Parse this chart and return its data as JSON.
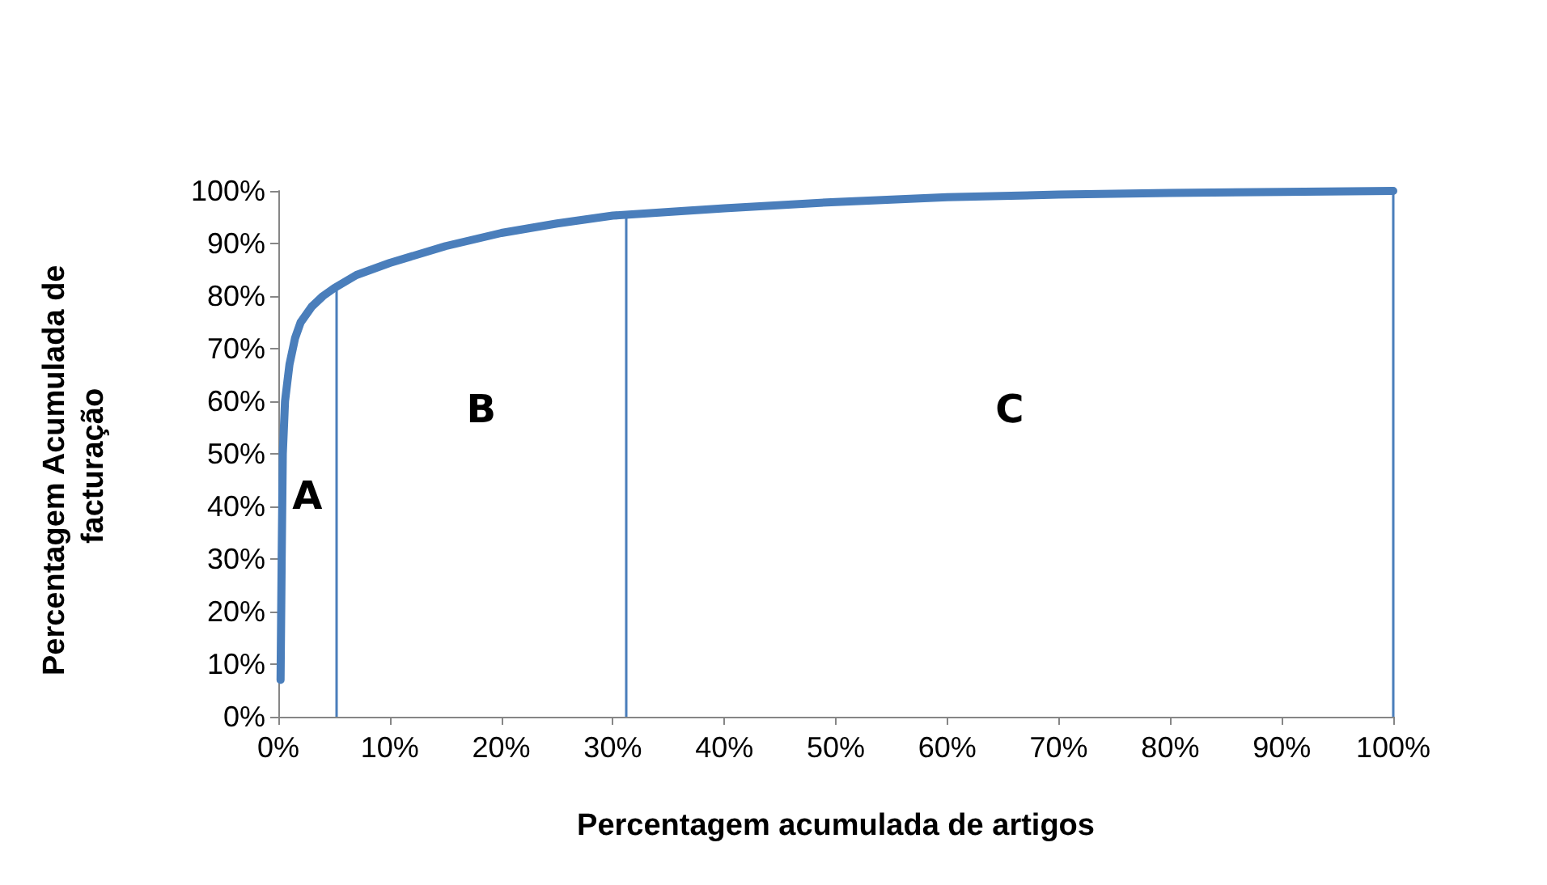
{
  "chart_data": {
    "type": "line",
    "xlabel": "Percentagem acumulada de artigos",
    "ylabel": "Percentagem Acumulada de facturação",
    "series": [
      {
        "color": "#4a7ebb",
        "x": [
          0.2,
          0.3,
          0.4,
          0.6,
          1,
          1.5,
          2,
          3,
          4,
          5,
          7,
          10,
          15,
          20,
          25,
          30,
          35,
          40,
          50,
          60,
          70,
          80,
          90,
          100
        ],
        "values": [
          7,
          30,
          50,
          60,
          67,
          72,
          75,
          78,
          80,
          81.5,
          84,
          86.3,
          89.5,
          92,
          93.8,
          95.3,
          96,
          96.7,
          97.9,
          98.8,
          99.3,
          99.6,
          99.8,
          100
        ]
      }
    ],
    "xlim": [
      0,
      100
    ],
    "ylim": [
      0,
      100
    ],
    "xticks": [
      {
        "value": 0,
        "label": "0%"
      },
      {
        "value": 10,
        "label": "10%"
      },
      {
        "value": 20,
        "label": "20%"
      },
      {
        "value": 30,
        "label": "30%"
      },
      {
        "value": 40,
        "label": "40%"
      },
      {
        "value": 50,
        "label": "50%"
      },
      {
        "value": 60,
        "label": "60%"
      },
      {
        "value": 70,
        "label": "70%"
      },
      {
        "value": 80,
        "label": "80%"
      },
      {
        "value": 90,
        "label": "90%"
      },
      {
        "value": 100,
        "label": "100%"
      }
    ],
    "yticks": [
      {
        "value": 0,
        "label": "0%"
      },
      {
        "value": 10,
        "label": "10%"
      },
      {
        "value": 20,
        "label": "20%"
      },
      {
        "value": 30,
        "label": "30%"
      },
      {
        "value": 40,
        "label": "40%"
      },
      {
        "value": 50,
        "label": "50%"
      },
      {
        "value": 60,
        "label": "60%"
      },
      {
        "value": 70,
        "label": "70%"
      },
      {
        "value": 80,
        "label": "80%"
      },
      {
        "value": 90,
        "label": "90%"
      },
      {
        "value": 100,
        "label": "100%"
      }
    ],
    "ref_lines": [
      {
        "axis": "x",
        "value": 5.2,
        "color": "#4a7ebb"
      },
      {
        "axis": "x",
        "value": 31.2,
        "color": "#4a7ebb"
      },
      {
        "axis": "x",
        "value": 100,
        "color": "#4a7ebb"
      }
    ],
    "annotations": [
      "A",
      "B",
      "C"
    ],
    "grid": false,
    "marker": "none",
    "line_style": "solid"
  }
}
